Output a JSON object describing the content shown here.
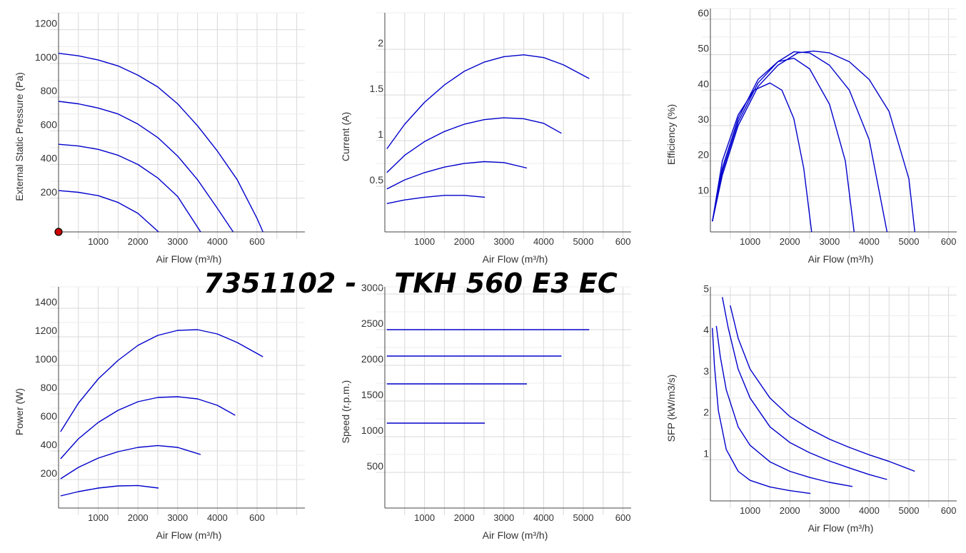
{
  "title": "7351102 -    TKH 560 E3 EC",
  "colors": {
    "curve": "#0000cc",
    "grid": "#d9d9d9",
    "axis": "#444444",
    "text": "#333333",
    "marker": "#cc0000"
  },
  "chart_data": [
    {
      "type": "line",
      "xlabel": "Air Flow (m³/h)",
      "ylabel": "External Static Pressure (Pa)",
      "xticks": [
        "1000",
        "2000",
        "3000",
        "4000",
        "600"
      ],
      "yticks": [
        "200",
        "400",
        "600",
        "800",
        "1000",
        "1200"
      ],
      "xlim": [
        0,
        6000
      ],
      "ylim": [
        0,
        1300
      ],
      "grid": true,
      "marker": {
        "x": 0,
        "y": 0
      },
      "series": [
        {
          "x": [
            0,
            500,
            1000,
            1500,
            2000,
            2500,
            3000,
            3500,
            4000,
            4500,
            5000,
            5150
          ],
          "y": [
            1060,
            1045,
            1020,
            985,
            930,
            860,
            760,
            630,
            480,
            310,
            80,
            0
          ]
        },
        {
          "x": [
            0,
            500,
            1000,
            1500,
            2000,
            2500,
            3000,
            3500,
            4000,
            4400
          ],
          "y": [
            775,
            760,
            735,
            700,
            640,
            560,
            450,
            310,
            140,
            0
          ]
        },
        {
          "x": [
            0,
            500,
            1000,
            1500,
            2000,
            2500,
            3000,
            3580
          ],
          "y": [
            520,
            510,
            490,
            455,
            400,
            320,
            210,
            0
          ]
        },
        {
          "x": [
            0,
            500,
            1000,
            1500,
            2000,
            2520
          ],
          "y": [
            245,
            235,
            215,
            175,
            110,
            0
          ]
        }
      ]
    },
    {
      "type": "line",
      "xlabel": "Air Flow (m³/h)",
      "ylabel": "Current (A)",
      "xticks": [
        "1000",
        "2000",
        "3000",
        "4000",
        "5000",
        "600"
      ],
      "yticks": [
        "0.5",
        "1",
        "1.5",
        "2"
      ],
      "xlim": [
        0,
        6000
      ],
      "ylim": [
        0,
        2.4
      ],
      "grid": true,
      "series": [
        {
          "x": [
            50,
            500,
            1000,
            1500,
            2000,
            2500,
            3000,
            3500,
            4000,
            4500,
            5150
          ],
          "y": [
            0.91,
            1.18,
            1.42,
            1.61,
            1.76,
            1.86,
            1.92,
            1.94,
            1.91,
            1.83,
            1.68
          ]
        },
        {
          "x": [
            50,
            500,
            1000,
            1500,
            2000,
            2500,
            3000,
            3500,
            4000,
            4450
          ],
          "y": [
            0.65,
            0.84,
            0.99,
            1.1,
            1.18,
            1.23,
            1.25,
            1.24,
            1.19,
            1.08
          ]
        },
        {
          "x": [
            50,
            500,
            1000,
            1500,
            2000,
            2500,
            3000,
            3580
          ],
          "y": [
            0.47,
            0.57,
            0.65,
            0.71,
            0.75,
            0.77,
            0.76,
            0.7
          ]
        },
        {
          "x": [
            50,
            500,
            1000,
            1500,
            2000,
            2520
          ],
          "y": [
            0.31,
            0.35,
            0.38,
            0.4,
            0.4,
            0.38
          ]
        }
      ]
    },
    {
      "type": "line",
      "xlabel": "Air Flow (m³/h)",
      "ylabel": "Efficiency (%)",
      "xticks": [
        "1000",
        "2000",
        "3000",
        "4000",
        "5000",
        "600"
      ],
      "yticks": [
        "10",
        "20",
        "30",
        "40",
        "50",
        "60"
      ],
      "xlim": [
        0,
        6000
      ],
      "ylim": [
        0,
        63
      ],
      "grid": true,
      "series": [
        {
          "x": [
            50,
            300,
            700,
            1200,
            1700,
            2200,
            2600,
            3000,
            3500,
            4000,
            4500,
            5000,
            5150
          ],
          "y": [
            3,
            16,
            30,
            41,
            47,
            50.5,
            51,
            50.5,
            48,
            43,
            34,
            15,
            0
          ]
        },
        {
          "x": [
            50,
            300,
            700,
            1200,
            1700,
            2100,
            2500,
            3000,
            3500,
            4000,
            4450
          ],
          "y": [
            3,
            17,
            31,
            42,
            48,
            50.8,
            50.5,
            47,
            40,
            26,
            0
          ]
        },
        {
          "x": [
            50,
            300,
            700,
            1200,
            1700,
            2100,
            2500,
            3000,
            3400,
            3620
          ],
          "y": [
            3,
            18,
            32,
            43,
            48,
            49,
            46,
            36,
            20,
            0
          ]
        },
        {
          "x": [
            50,
            300,
            700,
            1100,
            1500,
            1800,
            2100,
            2350,
            2550
          ],
          "y": [
            3,
            20,
            33,
            40,
            42,
            40,
            32,
            18,
            0
          ]
        }
      ]
    },
    {
      "type": "line",
      "xlabel": "Air Flow (m³/h)",
      "ylabel": "Power (W)",
      "xticks": [
        "1000",
        "2000",
        "3000",
        "4000",
        "600"
      ],
      "yticks": [
        "200",
        "400",
        "600",
        "800",
        "1000",
        "1200",
        "1400"
      ],
      "xlim": [
        0,
        6000
      ],
      "ylim": [
        0,
        1550
      ],
      "grid": true,
      "series": [
        {
          "x": [
            50,
            500,
            1000,
            1500,
            2000,
            2500,
            3000,
            3500,
            4000,
            4500,
            5150
          ],
          "y": [
            535,
            735,
            905,
            1035,
            1140,
            1210,
            1245,
            1250,
            1220,
            1160,
            1060
          ]
        },
        {
          "x": [
            50,
            500,
            1000,
            1500,
            2000,
            2500,
            3000,
            3500,
            4000,
            4450
          ],
          "y": [
            345,
            485,
            600,
            685,
            745,
            775,
            780,
            765,
            720,
            650
          ]
        },
        {
          "x": [
            50,
            500,
            1000,
            1500,
            2000,
            2500,
            3000,
            3580
          ],
          "y": [
            205,
            285,
            350,
            395,
            425,
            438,
            425,
            375
          ]
        },
        {
          "x": [
            50,
            500,
            1000,
            1500,
            2000,
            2520
          ],
          "y": [
            85,
            115,
            140,
            155,
            158,
            140
          ]
        }
      ]
    },
    {
      "type": "line",
      "xlabel": "Air Flow (m³/h)",
      "ylabel": "Speed (r.p.m.)",
      "xticks": [
        "1000",
        "2000",
        "3000",
        "4000",
        "5000",
        "600"
      ],
      "yticks": [
        "500",
        "1000",
        "1500",
        "2000",
        "2500",
        "3000"
      ],
      "xlim": [
        0,
        6000
      ],
      "ylim": [
        0,
        3100
      ],
      "grid": true,
      "series": [
        {
          "x": [
            50,
            5150
          ],
          "y": [
            2500,
            2500
          ]
        },
        {
          "x": [
            50,
            4450
          ],
          "y": [
            2130,
            2130
          ]
        },
        {
          "x": [
            50,
            3580
          ],
          "y": [
            1740,
            1740
          ]
        },
        {
          "x": [
            50,
            2520
          ],
          "y": [
            1190,
            1190
          ]
        }
      ]
    },
    {
      "type": "line",
      "xlabel": "Air Flow (m³/h)",
      "ylabel": "SFP (kW/m3/s)",
      "xticks": [
        "1000",
        "2000",
        "3000",
        "4000",
        "5000",
        "600"
      ],
      "yticks": [
        "1",
        "2",
        "3",
        "4",
        "5"
      ],
      "xlim": [
        0,
        6000
      ],
      "ylim": [
        0,
        5.2
      ],
      "grid": true,
      "series": [
        {
          "x": [
            500,
            700,
            1000,
            1500,
            2000,
            2500,
            3000,
            3500,
            4000,
            4500,
            5150
          ],
          "y": [
            4.75,
            3.95,
            3.2,
            2.5,
            2.05,
            1.75,
            1.5,
            1.3,
            1.12,
            0.96,
            0.72
          ]
        },
        {
          "x": [
            300,
            450,
            700,
            1000,
            1500,
            2000,
            2500,
            3000,
            3500,
            4000,
            4450
          ],
          "y": [
            4.95,
            4.2,
            3.2,
            2.5,
            1.8,
            1.42,
            1.17,
            0.97,
            0.8,
            0.64,
            0.52
          ]
        },
        {
          "x": [
            150,
            250,
            400,
            700,
            1000,
            1500,
            2000,
            2500,
            3000,
            3580
          ],
          "y": [
            4.25,
            3.5,
            2.7,
            1.8,
            1.35,
            0.95,
            0.72,
            0.57,
            0.45,
            0.35
          ]
        },
        {
          "x": [
            50,
            100,
            200,
            400,
            700,
            1000,
            1500,
            2000,
            2520
          ],
          "y": [
            4.2,
            3.3,
            2.2,
            1.25,
            0.72,
            0.5,
            0.34,
            0.25,
            0.18
          ]
        }
      ]
    }
  ]
}
